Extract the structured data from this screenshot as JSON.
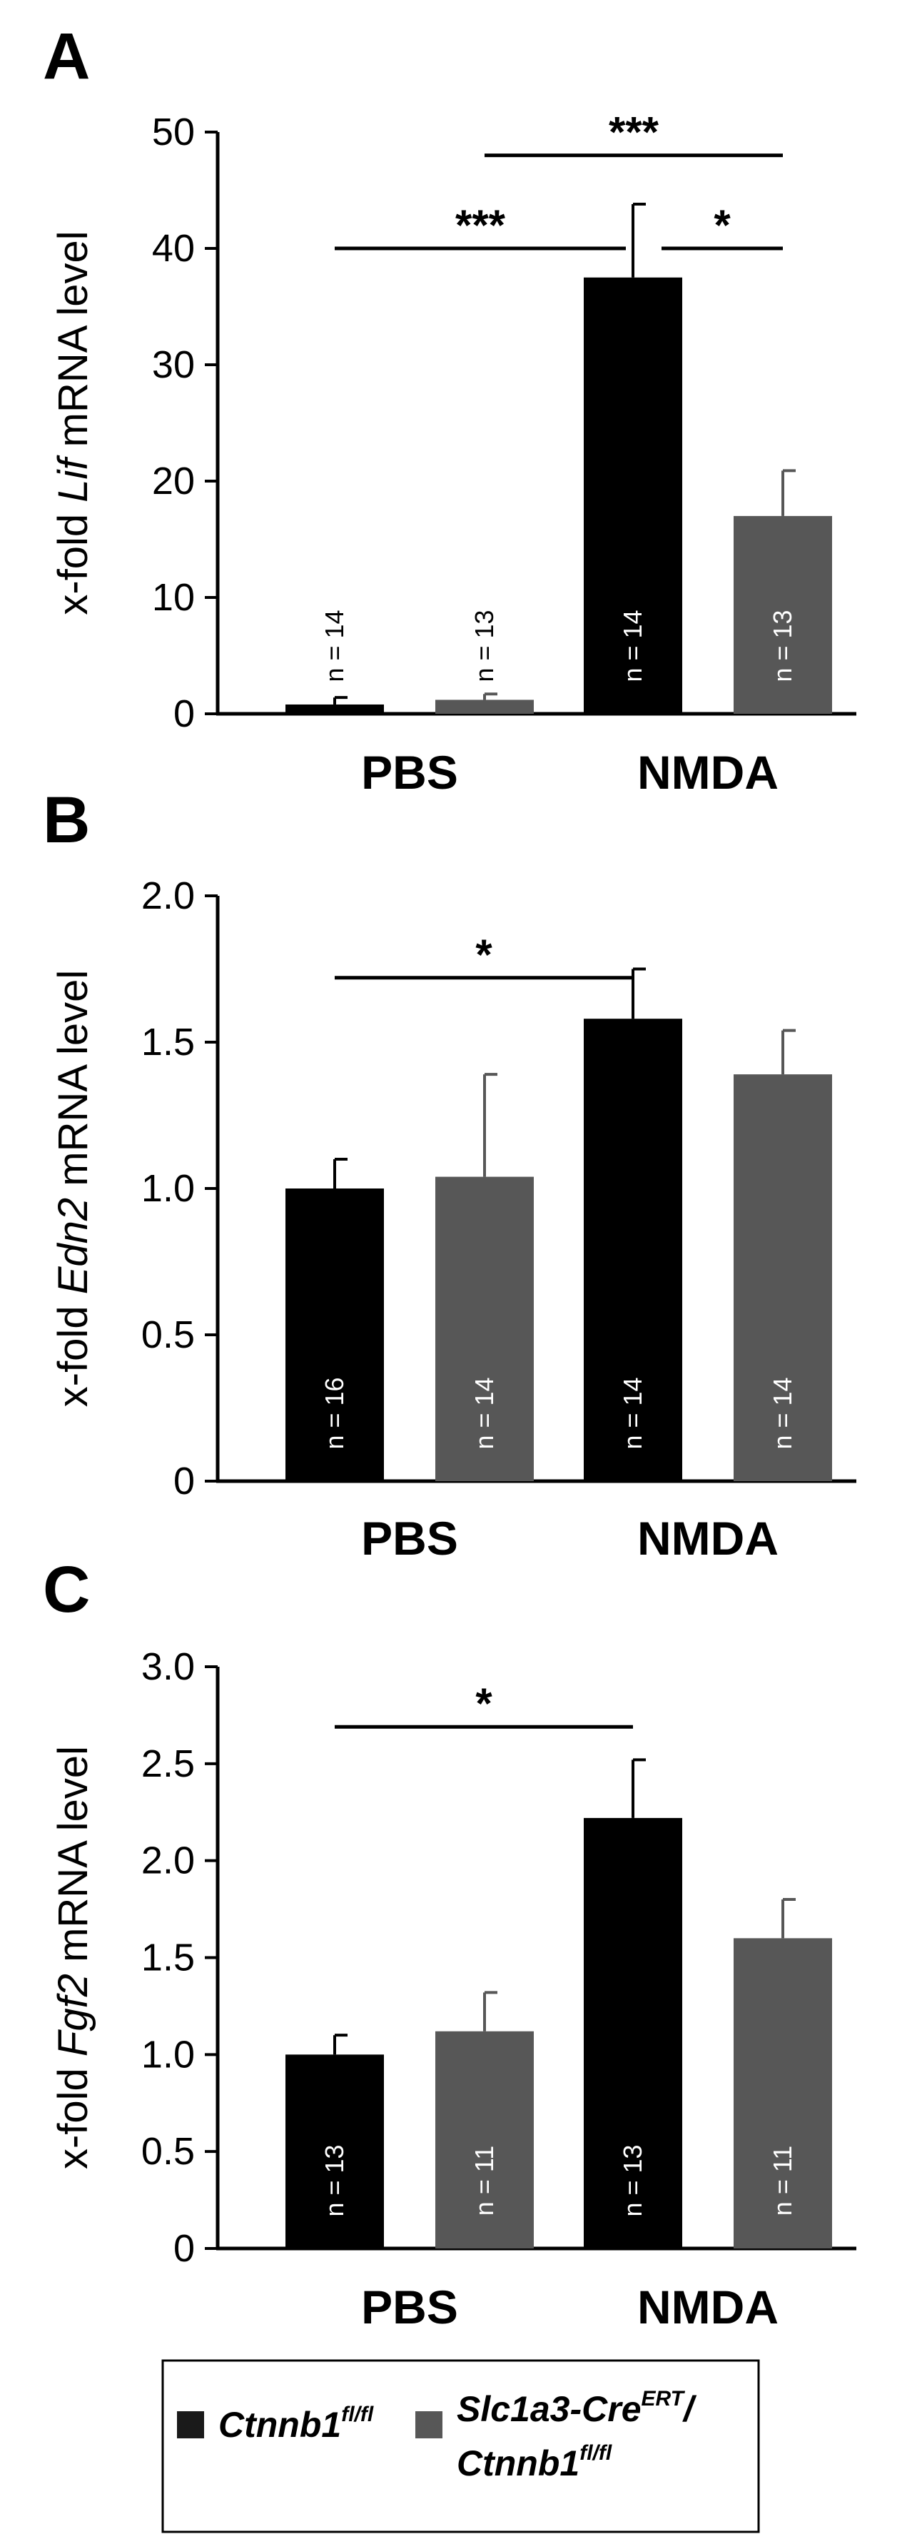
{
  "colors": {
    "genotype_a": "#000000",
    "genotype_b": "#575757",
    "axis": "#000000",
    "n_label": "#ffffff"
  },
  "chart_data": [
    {
      "type": "bar",
      "panel_letter": "A",
      "ylabel_prefix": "x-fold ",
      "ylabel_gene": "Lif",
      "ylabel_suffix": " mRNA level",
      "ylim": [
        0,
        50
      ],
      "yticks": [
        "0",
        "10",
        "20",
        "30",
        "40",
        "50"
      ],
      "ytick_values": [
        0,
        10,
        20,
        30,
        40,
        50
      ],
      "categories": [
        "PBS",
        "NMDA"
      ],
      "series": [
        {
          "values": [
            0.8,
            37.5
          ],
          "errors": [
            0.6,
            6.3
          ],
          "n": [
            "n = 14",
            "n = 14"
          ]
        },
        {
          "values": [
            1.2,
            17.0
          ],
          "errors": [
            0.5,
            3.9
          ],
          "n": [
            "n = 13",
            "n = 13"
          ]
        }
      ],
      "significance": [
        {
          "from": [
            0,
            0
          ],
          "to": [
            1,
            0
          ],
          "level": 40,
          "label": "***"
        },
        {
          "from": [
            0,
            1
          ],
          "to": [
            1,
            1
          ],
          "level": 48,
          "label": "***"
        },
        {
          "from": [
            1,
            0
          ],
          "to": [
            1,
            1
          ],
          "level": 40,
          "label": "*"
        }
      ]
    },
    {
      "type": "bar",
      "panel_letter": "B",
      "ylabel_prefix": "x-fold ",
      "ylabel_gene": "Edn2",
      "ylabel_suffix": " mRNA level",
      "ylim": [
        0,
        2.0
      ],
      "yticks": [
        "0",
        "0.5",
        "1.0",
        "1.5",
        "2.0"
      ],
      "ytick_values": [
        0,
        0.5,
        1.0,
        1.5,
        2.0
      ],
      "categories": [
        "PBS",
        "NMDA"
      ],
      "series": [
        {
          "values": [
            1.0,
            1.58
          ],
          "errors": [
            0.1,
            0.17
          ],
          "n": [
            "n = 16",
            "n = 14"
          ]
        },
        {
          "values": [
            1.04,
            1.39
          ],
          "errors": [
            0.35,
            0.15
          ],
          "n": [
            "n = 14",
            "n = 14"
          ]
        }
      ],
      "significance": [
        {
          "from": [
            0,
            0
          ],
          "to": [
            1,
            0
          ],
          "level": 1.72,
          "label": "*"
        }
      ]
    },
    {
      "type": "bar",
      "panel_letter": "C",
      "ylabel_prefix": "x-fold ",
      "ylabel_gene": "Fgf2",
      "ylabel_suffix": " mRNA level",
      "ylim": [
        0,
        3.0
      ],
      "yticks": [
        "0",
        "0.5",
        "1.0",
        "1.5",
        "2.0",
        "2.5",
        "3.0"
      ],
      "ytick_values": [
        0,
        0.5,
        1.0,
        1.5,
        2.0,
        2.5,
        3.0
      ],
      "categories": [
        "PBS",
        "NMDA"
      ],
      "series": [
        {
          "values": [
            1.0,
            2.22
          ],
          "errors": [
            0.1,
            0.3
          ],
          "n": [
            "n = 13",
            "n = 13"
          ]
        },
        {
          "values": [
            1.12,
            1.6
          ],
          "errors": [
            0.2,
            0.2
          ],
          "n": [
            "n = 11",
            "n = 11"
          ]
        }
      ],
      "significance": [
        {
          "from": [
            0,
            0
          ],
          "to": [
            1,
            0
          ],
          "level": 2.69,
          "label": "*"
        }
      ]
    }
  ],
  "legend": {
    "items": [
      {
        "gene": "Ctnnb1",
        "sup": "fl/fl",
        "tail": ""
      },
      {
        "gene": "Slc1a3-Cre",
        "sup": "ERT",
        "tail": "/",
        "gene2": "Ctnnb1",
        "sup2": "fl/fl"
      }
    ]
  }
}
